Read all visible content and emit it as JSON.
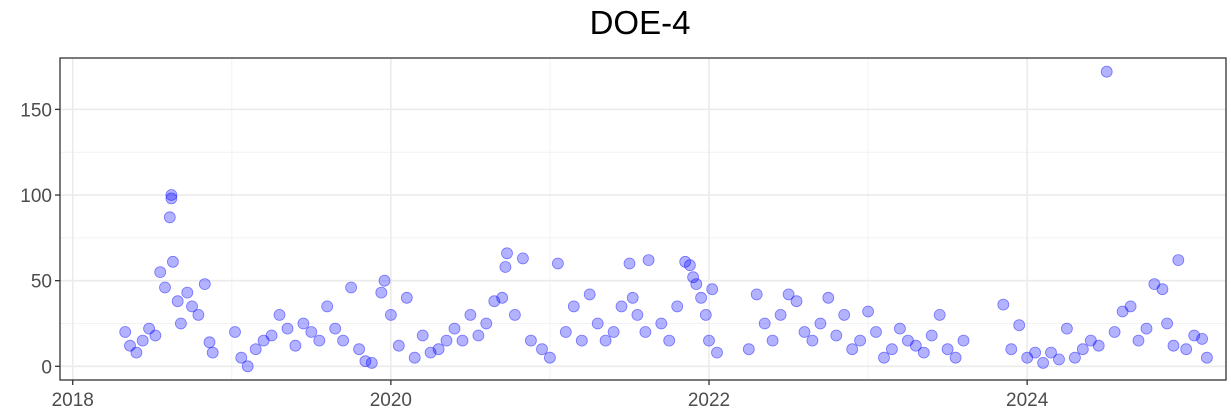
{
  "chart_data": {
    "type": "scatter",
    "title": "DOE-4",
    "xlabel": "",
    "ylabel": "",
    "xlim": [
      2017.92,
      2025.25
    ],
    "ylim": [
      -8,
      180
    ],
    "x_ticks": [
      2018,
      2020,
      2022,
      2024
    ],
    "y_ticks": [
      0,
      50,
      100,
      150
    ],
    "grid": true,
    "point_color": "#0000ff",
    "point_opacity": 0.3,
    "series": [
      {
        "points": [
          [
            2018.33,
            20
          ],
          [
            2018.36,
            12
          ],
          [
            2018.4,
            8
          ],
          [
            2018.44,
            15
          ],
          [
            2018.48,
            22
          ],
          [
            2018.52,
            18
          ],
          [
            2018.55,
            55
          ],
          [
            2018.58,
            46
          ],
          [
            2018.62,
            98
          ],
          [
            2018.62,
            100
          ],
          [
            2018.61,
            87
          ],
          [
            2018.63,
            61
          ],
          [
            2018.66,
            38
          ],
          [
            2018.68,
            25
          ],
          [
            2018.72,
            43
          ],
          [
            2018.75,
            35
          ],
          [
            2018.79,
            30
          ],
          [
            2018.83,
            48
          ],
          [
            2018.86,
            14
          ],
          [
            2018.88,
            8
          ],
          [
            2019.02,
            20
          ],
          [
            2019.06,
            5
          ],
          [
            2019.1,
            0
          ],
          [
            2019.15,
            10
          ],
          [
            2019.2,
            15
          ],
          [
            2019.25,
            18
          ],
          [
            2019.3,
            30
          ],
          [
            2019.35,
            22
          ],
          [
            2019.4,
            12
          ],
          [
            2019.45,
            25
          ],
          [
            2019.5,
            20
          ],
          [
            2019.55,
            15
          ],
          [
            2019.6,
            35
          ],
          [
            2019.65,
            22
          ],
          [
            2019.7,
            15
          ],
          [
            2019.75,
            46
          ],
          [
            2019.8,
            10
          ],
          [
            2019.84,
            3
          ],
          [
            2019.88,
            2
          ],
          [
            2019.94,
            43
          ],
          [
            2019.96,
            50
          ],
          [
            2020.0,
            30
          ],
          [
            2020.05,
            12
          ],
          [
            2020.1,
            40
          ],
          [
            2020.15,
            5
          ],
          [
            2020.2,
            18
          ],
          [
            2020.25,
            8
          ],
          [
            2020.3,
            10
          ],
          [
            2020.35,
            15
          ],
          [
            2020.4,
            22
          ],
          [
            2020.45,
            15
          ],
          [
            2020.5,
            30
          ],
          [
            2020.55,
            18
          ],
          [
            2020.6,
            25
          ],
          [
            2020.65,
            38
          ],
          [
            2020.7,
            40
          ],
          [
            2020.72,
            58
          ],
          [
            2020.73,
            66
          ],
          [
            2020.78,
            30
          ],
          [
            2020.83,
            63
          ],
          [
            2020.88,
            15
          ],
          [
            2020.95,
            10
          ],
          [
            2021.0,
            5
          ],
          [
            2021.05,
            60
          ],
          [
            2021.1,
            20
          ],
          [
            2021.15,
            35
          ],
          [
            2021.2,
            15
          ],
          [
            2021.25,
            42
          ],
          [
            2021.3,
            25
          ],
          [
            2021.35,
            15
          ],
          [
            2021.4,
            20
          ],
          [
            2021.45,
            35
          ],
          [
            2021.5,
            60
          ],
          [
            2021.52,
            40
          ],
          [
            2021.55,
            30
          ],
          [
            2021.6,
            20
          ],
          [
            2021.62,
            62
          ],
          [
            2021.7,
            25
          ],
          [
            2021.75,
            15
          ],
          [
            2021.8,
            35
          ],
          [
            2021.85,
            61
          ],
          [
            2021.88,
            59
          ],
          [
            2021.9,
            52
          ],
          [
            2021.92,
            48
          ],
          [
            2021.95,
            40
          ],
          [
            2021.98,
            30
          ],
          [
            2022.0,
            15
          ],
          [
            2022.02,
            45
          ],
          [
            2022.05,
            8
          ],
          [
            2022.25,
            10
          ],
          [
            2022.3,
            42
          ],
          [
            2022.35,
            25
          ],
          [
            2022.4,
            15
          ],
          [
            2022.45,
            30
          ],
          [
            2022.5,
            42
          ],
          [
            2022.55,
            38
          ],
          [
            2022.6,
            20
          ],
          [
            2022.65,
            15
          ],
          [
            2022.7,
            25
          ],
          [
            2022.75,
            40
          ],
          [
            2022.8,
            18
          ],
          [
            2022.85,
            30
          ],
          [
            2022.9,
            10
          ],
          [
            2022.95,
            15
          ],
          [
            2023.0,
            32
          ],
          [
            2023.05,
            20
          ],
          [
            2023.1,
            5
          ],
          [
            2023.15,
            10
          ],
          [
            2023.2,
            22
          ],
          [
            2023.25,
            15
          ],
          [
            2023.3,
            12
          ],
          [
            2023.35,
            8
          ],
          [
            2023.4,
            18
          ],
          [
            2023.45,
            30
          ],
          [
            2023.5,
            10
          ],
          [
            2023.55,
            5
          ],
          [
            2023.6,
            15
          ],
          [
            2023.85,
            36
          ],
          [
            2023.9,
            10
          ],
          [
            2023.95,
            24
          ],
          [
            2024.0,
            5
          ],
          [
            2024.05,
            8
          ],
          [
            2024.1,
            2
          ],
          [
            2024.15,
            8
          ],
          [
            2024.2,
            4
          ],
          [
            2024.25,
            22
          ],
          [
            2024.3,
            5
          ],
          [
            2024.35,
            10
          ],
          [
            2024.4,
            15
          ],
          [
            2024.45,
            12
          ],
          [
            2024.5,
            172
          ],
          [
            2024.55,
            20
          ],
          [
            2024.6,
            32
          ],
          [
            2024.65,
            35
          ],
          [
            2024.7,
            15
          ],
          [
            2024.75,
            22
          ],
          [
            2024.8,
            48
          ],
          [
            2024.85,
            45
          ],
          [
            2024.88,
            25
          ],
          [
            2024.92,
            12
          ],
          [
            2024.95,
            62
          ],
          [
            2025.0,
            10
          ],
          [
            2025.05,
            18
          ],
          [
            2025.1,
            16
          ],
          [
            2025.13,
            5
          ]
        ]
      }
    ]
  }
}
